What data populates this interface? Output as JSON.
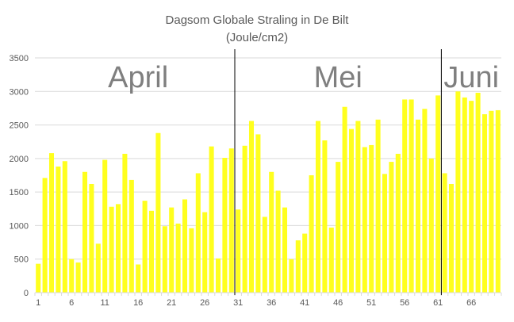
{
  "chart_data": {
    "type": "bar",
    "title": "Dagsom Globale Straling in De Bilt",
    "subtitle": "(Joule/cm2)",
    "xlabel": "",
    "ylabel": "",
    "ylim": [
      0,
      3500
    ],
    "yticks": [
      0,
      500,
      1000,
      1500,
      2000,
      2500,
      3000,
      3500
    ],
    "xticks": [
      1,
      6,
      11,
      16,
      21,
      26,
      31,
      36,
      41,
      46,
      51,
      56,
      61,
      66
    ],
    "grid": true,
    "bar_color": "#ffff1e",
    "grid_color": "#d9d9d9",
    "divider_color": "#000000",
    "x": [
      1,
      2,
      3,
      4,
      5,
      6,
      7,
      8,
      9,
      10,
      11,
      12,
      13,
      14,
      15,
      16,
      17,
      18,
      19,
      20,
      21,
      22,
      23,
      24,
      25,
      26,
      27,
      28,
      29,
      30,
      31,
      32,
      33,
      34,
      35,
      36,
      37,
      38,
      39,
      40,
      41,
      42,
      43,
      44,
      45,
      46,
      47,
      48,
      49,
      50,
      51,
      52,
      53,
      54,
      55,
      56,
      57,
      58,
      59,
      60,
      61,
      62,
      63,
      64,
      65,
      66,
      67,
      68,
      69,
      70
    ],
    "values": [
      430,
      1710,
      2080,
      1880,
      1960,
      500,
      450,
      1800,
      1620,
      730,
      1980,
      1280,
      1320,
      2070,
      1680,
      420,
      1370,
      1220,
      2380,
      990,
      1270,
      1030,
      1390,
      960,
      1780,
      1200,
      2180,
      510,
      2010,
      2150,
      1240,
      2190,
      2560,
      2360,
      1130,
      1800,
      1520,
      1270,
      500,
      780,
      880,
      1750,
      2560,
      2270,
      970,
      1950,
      2770,
      2440,
      2560,
      2170,
      2200,
      2580,
      1770,
      1950,
      2070,
      2880,
      2880,
      2580,
      2740,
      2000,
      2940,
      1780,
      1620,
      3000,
      2910,
      2860,
      2980,
      2660,
      2710,
      2720
    ],
    "annotations": [
      {
        "label": "April",
        "x_center": 16
      },
      {
        "label": "Mei",
        "x_center": 46
      },
      {
        "label": "Juni",
        "x_center": 66
      }
    ],
    "dividers": [
      30.5,
      61.5
    ]
  }
}
